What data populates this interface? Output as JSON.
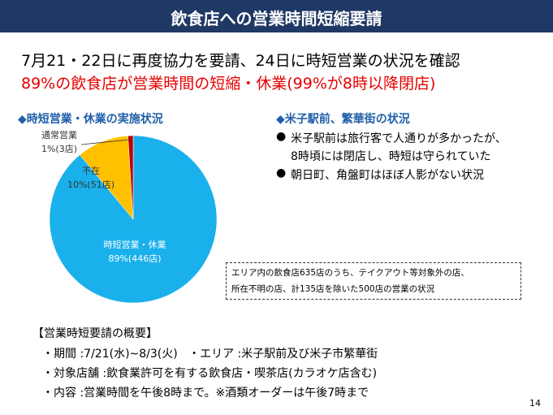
{
  "header": {
    "title": "飲食店への営業時間短縮要請"
  },
  "headline": {
    "line1": "7月21・22日に再度協力を要請、24日に時短営業の状況を確認",
    "line2": "89%の飲食店が営業時間の短縮・休業(99%が8時以降閉店)"
  },
  "left_heading": "◆時短営業・休業の実施状況",
  "chart_data": {
    "type": "pie",
    "categories": [
      "時短営業・休業",
      "不在",
      "通常営業"
    ],
    "values": [
      89,
      10,
      1
    ],
    "value_labels": [
      "89%(446店)",
      "10%(51店)",
      "1%(3店)"
    ],
    "colors": [
      "#1ab0ec",
      "#ffc000",
      "#c00000"
    ]
  },
  "right_heading": "◆米子駅前、繁華街の状況",
  "bullets": [
    "米子駅前は旅行客で人通りが多かったが、",
    "8時頃には閉店し、時短は守られていた",
    "朝日町、角盤町はほぼ人影がない状況"
  ],
  "note": [
    "エリア内の飲食店635店のうち、テイクアウト等対象外の店、",
    "所在不明の店、計135店を除いた500店の営業の状況"
  ],
  "summary": {
    "heading": "【営業時短要請の概要】",
    "rows": [
      "・期間 :7/21(水)~8/3(火)   ・エリア :米子駅前及び米子市繁華街",
      "・対象店舗 :飲食業許可を有する飲食店・喫茶店(カラオケ店含む)",
      "・内容 :営業時間を午後8時まで。※酒類オーダーは午後7時まで"
    ]
  },
  "page_number": "14"
}
